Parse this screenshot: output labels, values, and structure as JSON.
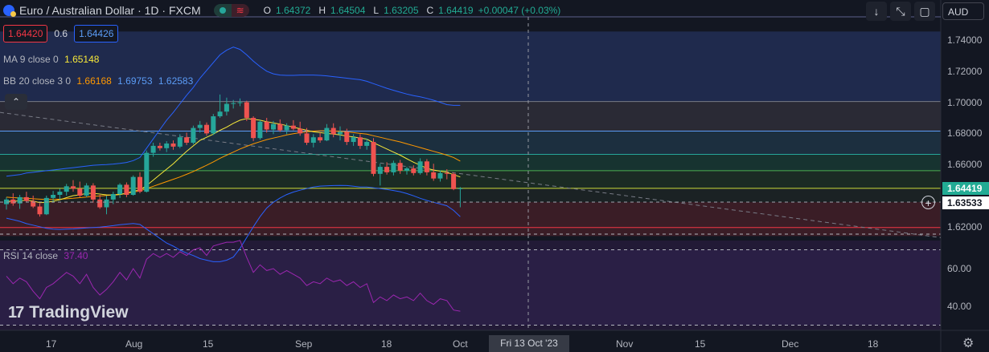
{
  "header": {
    "symbol": "Euro / Australian Dollar · 1D · FXCM",
    "o_label": "O",
    "o": "1.64372",
    "h_label": "H",
    "h": "1.64504",
    "l_label": "L",
    "l": "1.63205",
    "c_label": "C",
    "c": "1.64419",
    "change": "+0.00047 (+0.03%)"
  },
  "prices": {
    "bid": "1.64420",
    "spread": "0.6",
    "ask": "1.64426"
  },
  "legends": {
    "ma": {
      "name": "MA",
      "params": "9 close 0",
      "value": "1.65148"
    },
    "bb": {
      "name": "BB",
      "params": "20 close 3 0",
      "basis": "1.66168",
      "upper": "1.69753",
      "lower": "1.62583"
    },
    "rsi": {
      "name": "RSI",
      "params": "14 close",
      "value": "37.40"
    }
  },
  "toolbar": {
    "currency": "AUD"
  },
  "price_axis": {
    "labels": [
      "1.74000",
      "1.72000",
      "1.70000",
      "1.68000",
      "1.66000",
      "1.62000"
    ],
    "last_price": "1.64419",
    "crosshair_price": "1.63533"
  },
  "rsi_axis": {
    "labels": [
      "60.00",
      "40.00"
    ]
  },
  "time_axis": {
    "labels": [
      "17",
      "Aug",
      "15",
      "Sep",
      "18",
      "Oct",
      "Nov",
      "15",
      "Dec",
      "18"
    ],
    "crosshair_date": "Fri 13 Oct '23"
  },
  "watermark": "TradingView",
  "colors": {
    "up": "#26a69a",
    "down": "#ef5350",
    "ma": "#f7e83a",
    "bb_basis": "#ff9800",
    "bb_band": "#2962ff",
    "rsi": "#9c27b0",
    "background": "#131722"
  },
  "chart_data": {
    "type": "candlestick",
    "symbol": "EURAUD",
    "timeframe": "1D",
    "ylim": [
      1.615,
      1.745
    ],
    "candles": [
      {
        "o": 1.634,
        "h": 1.6385,
        "l": 1.6305,
        "c": 1.637
      },
      {
        "o": 1.637,
        "h": 1.641,
        "l": 1.633,
        "c": 1.6345
      },
      {
        "o": 1.6345,
        "h": 1.64,
        "l": 1.631,
        "c": 1.6385
      },
      {
        "o": 1.6385,
        "h": 1.642,
        "l": 1.6355,
        "c": 1.636
      },
      {
        "o": 1.636,
        "h": 1.6395,
        "l": 1.6315,
        "c": 1.6325
      },
      {
        "o": 1.6325,
        "h": 1.6345,
        "l": 1.626,
        "c": 1.6275
      },
      {
        "o": 1.6275,
        "h": 1.6395,
        "l": 1.627,
        "c": 1.638
      },
      {
        "o": 1.638,
        "h": 1.6425,
        "l": 1.635,
        "c": 1.64
      },
      {
        "o": 1.64,
        "h": 1.644,
        "l": 1.637,
        "c": 1.642
      },
      {
        "o": 1.642,
        "h": 1.647,
        "l": 1.6395,
        "c": 1.6455
      },
      {
        "o": 1.6455,
        "h": 1.6495,
        "l": 1.642,
        "c": 1.644
      },
      {
        "o": 1.644,
        "h": 1.6485,
        "l": 1.6385,
        "c": 1.6395
      },
      {
        "o": 1.6395,
        "h": 1.6475,
        "l": 1.6385,
        "c": 1.646
      },
      {
        "o": 1.646,
        "h": 1.6475,
        "l": 1.635,
        "c": 1.637
      },
      {
        "o": 1.637,
        "h": 1.64,
        "l": 1.631,
        "c": 1.632
      },
      {
        "o": 1.632,
        "h": 1.6395,
        "l": 1.6275,
        "c": 1.637
      },
      {
        "o": 1.637,
        "h": 1.642,
        "l": 1.634,
        "c": 1.6405
      },
      {
        "o": 1.6405,
        "h": 1.6475,
        "l": 1.638,
        "c": 1.6465
      },
      {
        "o": 1.6465,
        "h": 1.648,
        "l": 1.6385,
        "c": 1.64
      },
      {
        "o": 1.64,
        "h": 1.6525,
        "l": 1.6395,
        "c": 1.6515
      },
      {
        "o": 1.6515,
        "h": 1.6545,
        "l": 1.641,
        "c": 1.642
      },
      {
        "o": 1.642,
        "h": 1.6685,
        "l": 1.6415,
        "c": 1.667
      },
      {
        "o": 1.667,
        "h": 1.6735,
        "l": 1.6645,
        "c": 1.6715
      },
      {
        "o": 1.6715,
        "h": 1.6735,
        "l": 1.6685,
        "c": 1.67
      },
      {
        "o": 1.67,
        "h": 1.6745,
        "l": 1.6675,
        "c": 1.673
      },
      {
        "o": 1.673,
        "h": 1.675,
        "l": 1.669,
        "c": 1.671
      },
      {
        "o": 1.671,
        "h": 1.679,
        "l": 1.67,
        "c": 1.677
      },
      {
        "o": 1.677,
        "h": 1.68,
        "l": 1.672,
        "c": 1.6735
      },
      {
        "o": 1.6735,
        "h": 1.6845,
        "l": 1.6725,
        "c": 1.683
      },
      {
        "o": 1.683,
        "h": 1.6875,
        "l": 1.68,
        "c": 1.685
      },
      {
        "o": 1.685,
        "h": 1.6865,
        "l": 1.678,
        "c": 1.6795
      },
      {
        "o": 1.6795,
        "h": 1.692,
        "l": 1.6785,
        "c": 1.6905
      },
      {
        "o": 1.6905,
        "h": 1.7045,
        "l": 1.6895,
        "c": 1.6935
      },
      {
        "o": 1.6935,
        "h": 1.7025,
        "l": 1.691,
        "c": 1.6985
      },
      {
        "o": 1.6985,
        "h": 1.701,
        "l": 1.6955,
        "c": 1.699
      },
      {
        "o": 1.699,
        "h": 1.702,
        "l": 1.697,
        "c": 1.6995
      },
      {
        "o": 1.6995,
        "h": 1.7005,
        "l": 1.6875,
        "c": 1.6895
      },
      {
        "o": 1.6895,
        "h": 1.6905,
        "l": 1.6745,
        "c": 1.6765
      },
      {
        "o": 1.6765,
        "h": 1.688,
        "l": 1.6755,
        "c": 1.687
      },
      {
        "o": 1.687,
        "h": 1.6895,
        "l": 1.68,
        "c": 1.682
      },
      {
        "o": 1.682,
        "h": 1.6875,
        "l": 1.679,
        "c": 1.6855
      },
      {
        "o": 1.6855,
        "h": 1.6885,
        "l": 1.6805,
        "c": 1.6815
      },
      {
        "o": 1.6815,
        "h": 1.686,
        "l": 1.679,
        "c": 1.6845
      },
      {
        "o": 1.6845,
        "h": 1.688,
        "l": 1.6815,
        "c": 1.6825
      },
      {
        "o": 1.6825,
        "h": 1.687,
        "l": 1.678,
        "c": 1.6795
      },
      {
        "o": 1.6795,
        "h": 1.683,
        "l": 1.672,
        "c": 1.6735
      },
      {
        "o": 1.6735,
        "h": 1.679,
        "l": 1.6705,
        "c": 1.677
      },
      {
        "o": 1.677,
        "h": 1.68,
        "l": 1.6735,
        "c": 1.675
      },
      {
        "o": 1.675,
        "h": 1.6855,
        "l": 1.6745,
        "c": 1.683
      },
      {
        "o": 1.683,
        "h": 1.686,
        "l": 1.677,
        "c": 1.679
      },
      {
        "o": 1.679,
        "h": 1.684,
        "l": 1.675,
        "c": 1.6805
      },
      {
        "o": 1.6805,
        "h": 1.6825,
        "l": 1.672,
        "c": 1.674
      },
      {
        "o": 1.674,
        "h": 1.679,
        "l": 1.6715,
        "c": 1.677
      },
      {
        "o": 1.677,
        "h": 1.679,
        "l": 1.6695,
        "c": 1.6715
      },
      {
        "o": 1.6715,
        "h": 1.676,
        "l": 1.669,
        "c": 1.674
      },
      {
        "o": 1.674,
        "h": 1.6765,
        "l": 1.652,
        "c": 1.6535
      },
      {
        "o": 1.6535,
        "h": 1.66,
        "l": 1.646,
        "c": 1.658
      },
      {
        "o": 1.658,
        "h": 1.661,
        "l": 1.653,
        "c": 1.6545
      },
      {
        "o": 1.6545,
        "h": 1.662,
        "l": 1.6525,
        "c": 1.6605
      },
      {
        "o": 1.6605,
        "h": 1.6625,
        "l": 1.6535,
        "c": 1.6555
      },
      {
        "o": 1.6555,
        "h": 1.658,
        "l": 1.653,
        "c": 1.657
      },
      {
        "o": 1.657,
        "h": 1.659,
        "l": 1.6525,
        "c": 1.654
      },
      {
        "o": 1.654,
        "h": 1.6635,
        "l": 1.653,
        "c": 1.6615
      },
      {
        "o": 1.6615,
        "h": 1.663,
        "l": 1.6525,
        "c": 1.6545
      },
      {
        "o": 1.6545,
        "h": 1.66,
        "l": 1.649,
        "c": 1.6505
      },
      {
        "o": 1.6505,
        "h": 1.6555,
        "l": 1.6485,
        "c": 1.654
      },
      {
        "o": 1.654,
        "h": 1.6565,
        "l": 1.65,
        "c": 1.6535
      },
      {
        "o": 1.6535,
        "h": 1.6545,
        "l": 1.643,
        "c": 1.6437
      },
      {
        "o": 1.6437,
        "h": 1.645,
        "l": 1.632,
        "c": 1.6442
      }
    ],
    "ma9": [
      1.636,
      1.6358,
      1.6362,
      1.6365,
      1.636,
      1.635,
      1.6352,
      1.6358,
      1.6368,
      1.6382,
      1.6395,
      1.64,
      1.641,
      1.641,
      1.6405,
      1.64,
      1.6398,
      1.6402,
      1.641,
      1.6425,
      1.643,
      1.646,
      1.6495,
      1.653,
      1.6565,
      1.66,
      1.664,
      1.668,
      1.6715,
      1.675,
      1.677,
      1.679,
      1.6815,
      1.6835,
      1.686,
      1.688,
      1.689,
      1.6885,
      1.688,
      1.687,
      1.6862,
      1.6855,
      1.6845,
      1.6835,
      1.6825,
      1.6815,
      1.6805,
      1.68,
      1.6795,
      1.679,
      1.6785,
      1.6778,
      1.6772,
      1.6765,
      1.6758,
      1.6735,
      1.6715,
      1.6695,
      1.6675,
      1.6655,
      1.6632,
      1.661,
      1.659,
      1.657,
      1.656,
      1.6552,
      1.6545,
      1.653,
      1.6515
    ],
    "bb_basis": [
      1.6385,
      1.6382,
      1.638,
      1.6378,
      1.6375,
      1.6372,
      1.637,
      1.637,
      1.6372,
      1.6375,
      1.6378,
      1.6382,
      1.6386,
      1.639,
      1.6393,
      1.6396,
      1.64,
      1.6405,
      1.641,
      1.6418,
      1.6425,
      1.644,
      1.6455,
      1.647,
      1.6485,
      1.65,
      1.6515,
      1.6532,
      1.655,
      1.657,
      1.659,
      1.6612,
      1.6635,
      1.6655,
      1.6675,
      1.6695,
      1.6712,
      1.6728,
      1.6742,
      1.6755,
      1.6765,
      1.6775,
      1.6785,
      1.6793,
      1.68,
      1.6805,
      1.681,
      1.6812,
      1.6812,
      1.681,
      1.6808,
      1.6805,
      1.68,
      1.6795,
      1.679,
      1.678,
      1.677,
      1.676,
      1.675,
      1.674,
      1.6728,
      1.6716,
      1.6704,
      1.6692,
      1.668,
      1.6668,
      1.6655,
      1.664,
      1.6617
    ],
    "bb_upper": [
      1.652,
      1.6525,
      1.653,
      1.654,
      1.6545,
      1.655,
      1.6555,
      1.656,
      1.6565,
      1.657,
      1.6575,
      1.658,
      1.6585,
      1.659,
      1.6593,
      1.6595,
      1.6598,
      1.6602,
      1.6608,
      1.662,
      1.664,
      1.67,
      1.676,
      1.682,
      1.688,
      1.693,
      1.6985,
      1.704,
      1.709,
      1.715,
      1.72,
      1.725,
      1.73,
      1.733,
      1.735,
      1.7335,
      1.73,
      1.726,
      1.7225,
      1.7195,
      1.7178,
      1.717,
      1.7168,
      1.7168,
      1.717,
      1.717,
      1.717,
      1.7168,
      1.7165,
      1.716,
      1.7155,
      1.715,
      1.7145,
      1.714,
      1.713,
      1.7115,
      1.71,
      1.7085,
      1.7072,
      1.706,
      1.7048,
      1.7038,
      1.703,
      1.702,
      1.7008,
      1.6995,
      1.698,
      1.6975,
      1.6975
    ],
    "bb_lower": [
      1.625,
      1.624,
      1.623,
      1.6215,
      1.6205,
      1.6195,
      1.6185,
      1.618,
      1.6178,
      1.618,
      1.6181,
      1.6184,
      1.6187,
      1.619,
      1.6193,
      1.6197,
      1.6202,
      1.6208,
      1.6212,
      1.6216,
      1.621,
      1.618,
      1.615,
      1.612,
      1.609,
      1.607,
      1.6045,
      1.6025,
      1.601,
      1.599,
      1.598,
      1.597,
      1.597,
      1.598,
      1.6,
      1.6055,
      1.6125,
      1.6195,
      1.626,
      1.6315,
      1.6352,
      1.638,
      1.6402,
      1.6418,
      1.643,
      1.644,
      1.645,
      1.6456,
      1.6458,
      1.646,
      1.6461,
      1.646,
      1.6455,
      1.645,
      1.645,
      1.6445,
      1.644,
      1.6435,
      1.6428,
      1.642,
      1.6408,
      1.6394,
      1.6378,
      1.6364,
      1.6352,
      1.6341,
      1.633,
      1.63,
      1.626
    ],
    "rsi": [
      56,
      52,
      55,
      53,
      48,
      44,
      50,
      52,
      55,
      58,
      56,
      52,
      57,
      50,
      46,
      49,
      53,
      58,
      54,
      60,
      55,
      65,
      68,
      66,
      68,
      66,
      69,
      67,
      70,
      71,
      67,
      72,
      73,
      74,
      74,
      75,
      66,
      58,
      62,
      59,
      60,
      57,
      59,
      57,
      55,
      51,
      53,
      52,
      55,
      53,
      54,
      51,
      53,
      50,
      52,
      42,
      45,
      43,
      46,
      44,
      45,
      43,
      47,
      43,
      41,
      44,
      43,
      38,
      37.4
    ],
    "horizontal_levels": [
      1.7,
      1.681,
      1.666,
      1.6555,
      1.6442,
      1.6353,
      1.619
    ],
    "trendline": {
      "from_index": 0,
      "from_price": 1.693,
      "slope_per_bar": -0.000575
    },
    "rsi_levels": [
      70,
      30
    ]
  }
}
